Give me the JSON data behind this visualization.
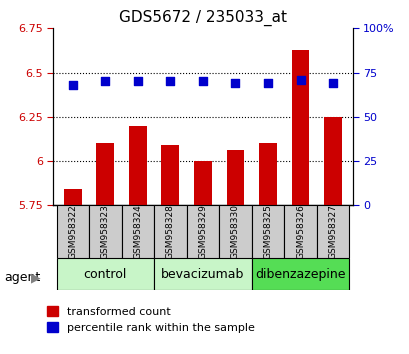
{
  "title": "GDS5672 / 235033_at",
  "samples": [
    "GSM958322",
    "GSM958323",
    "GSM958324",
    "GSM958328",
    "GSM958329",
    "GSM958330",
    "GSM958325",
    "GSM958326",
    "GSM958327"
  ],
  "bar_values": [
    5.84,
    6.1,
    6.2,
    6.09,
    6.0,
    6.06,
    6.1,
    6.63,
    6.25
  ],
  "bar_base": 5.75,
  "dot_values": [
    6.43,
    6.45,
    6.45,
    6.45,
    6.45,
    6.44,
    6.44,
    6.46,
    6.44
  ],
  "bar_color": "#cc0000",
  "dot_color": "#0000cc",
  "ylim_left": [
    5.75,
    6.75
  ],
  "ylim_right": [
    0,
    100
  ],
  "yticks_left": [
    5.75,
    6.0,
    6.25,
    6.5,
    6.75
  ],
  "ytick_labels_left": [
    "5.75",
    "6",
    "6.25",
    "6.5",
    "6.75"
  ],
  "yticks_right": [
    0,
    25,
    50,
    75,
    100
  ],
  "ytick_labels_right": [
    "0",
    "25",
    "50",
    "75",
    "100%"
  ],
  "grid_lines": [
    6.0,
    6.25,
    6.5
  ],
  "groups": [
    {
      "label": "control",
      "indices": [
        0,
        1,
        2
      ],
      "color": "#c8f5c8"
    },
    {
      "label": "bevacizumab",
      "indices": [
        3,
        4,
        5
      ],
      "color": "#c8f5c8"
    },
    {
      "label": "dibenzazepine",
      "indices": [
        6,
        7,
        8
      ],
      "color": "#55dd55"
    }
  ],
  "legend_red_label": "transformed count",
  "legend_blue_label": "percentile rank within the sample",
  "agent_label": "agent",
  "left_color": "#cc0000",
  "right_color": "#0000cc",
  "tick_box_color": "#cccccc",
  "bar_width": 0.55,
  "dot_size": 40,
  "title_fontsize": 11,
  "tick_fontsize": 8,
  "group_fontsize": 9,
  "legend_fontsize": 8
}
